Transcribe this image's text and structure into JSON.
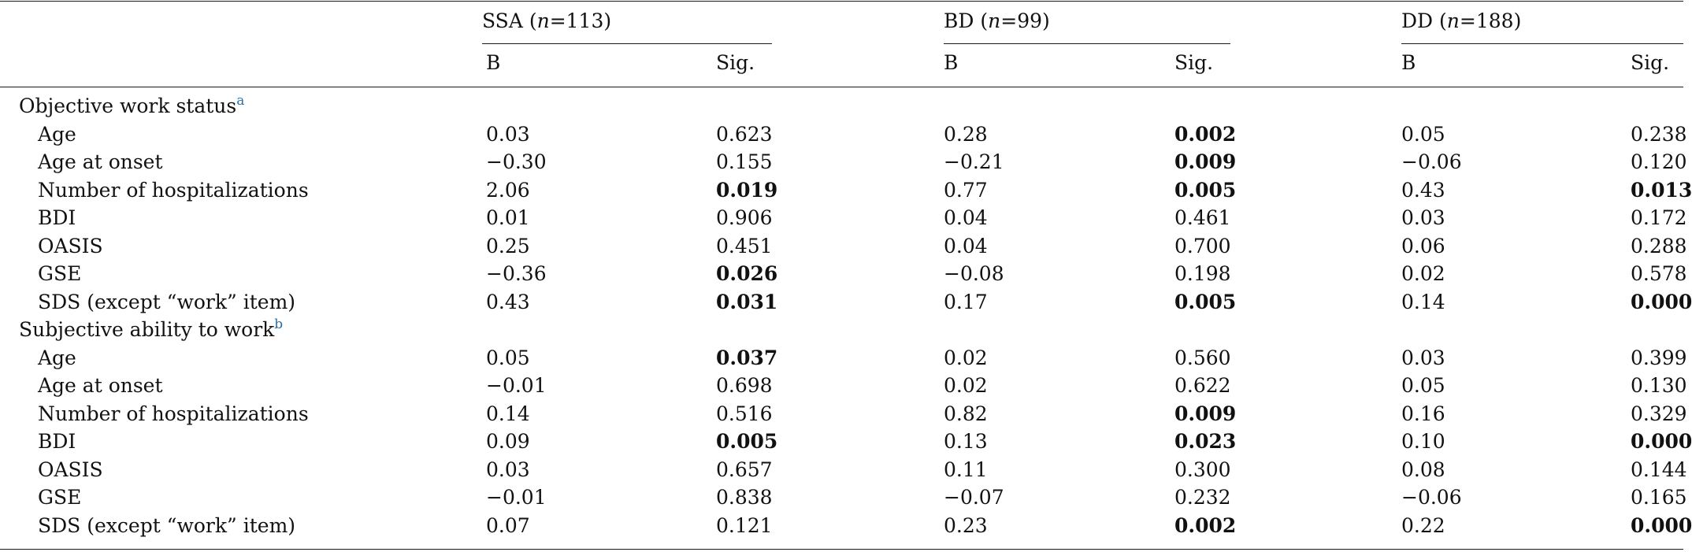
{
  "groups": [
    {
      "name": "SSA",
      "n_label": "n",
      "eq": "=",
      "n_value": "113"
    },
    {
      "name": "BD",
      "n_label": "n",
      "eq": "=",
      "n_value": "99"
    },
    {
      "name": "DD",
      "n_label": "n",
      "eq": "=",
      "n_value": "188"
    }
  ],
  "col_headers": [
    "B",
    "Sig.",
    "B",
    "Sig.",
    "B",
    "Sig."
  ],
  "sections": [
    {
      "label": "Objective work status",
      "footnote": "a",
      "rows": [
        {
          "label": "Age",
          "values": [
            "0.03",
            "0.623",
            "0.28",
            "0.002",
            "0.05",
            "0.238"
          ],
          "bold": [
            false,
            false,
            false,
            true,
            false,
            false
          ]
        },
        {
          "label": "Age at onset",
          "values": [
            "−0.30",
            "0.155",
            "−0.21",
            "0.009",
            "−0.06",
            "0.120"
          ],
          "bold": [
            false,
            false,
            false,
            true,
            false,
            false
          ]
        },
        {
          "label": "Number of hospitalizations",
          "values": [
            "2.06",
            "0.019",
            "0.77",
            "0.005",
            "0.43",
            "0.013"
          ],
          "bold": [
            false,
            true,
            false,
            true,
            false,
            true
          ]
        },
        {
          "label": "BDI",
          "values": [
            "0.01",
            "0.906",
            "0.04",
            "0.461",
            "0.03",
            "0.172"
          ],
          "bold": [
            false,
            false,
            false,
            false,
            false,
            false
          ]
        },
        {
          "label": "OASIS",
          "values": [
            "0.25",
            "0.451",
            "0.04",
            "0.700",
            "0.06",
            "0.288"
          ],
          "bold": [
            false,
            false,
            false,
            false,
            false,
            false
          ]
        },
        {
          "label": "GSE",
          "values": [
            "−0.36",
            "0.026",
            "−0.08",
            "0.198",
            "0.02",
            "0.578"
          ],
          "bold": [
            false,
            true,
            false,
            false,
            false,
            false
          ]
        },
        {
          "label": "SDS (except “work” item)",
          "values": [
            "0.43",
            "0.031",
            "0.17",
            "0.005",
            "0.14",
            "0.000"
          ],
          "bold": [
            false,
            true,
            false,
            true,
            false,
            true
          ]
        }
      ]
    },
    {
      "label": "Subjective ability to work",
      "footnote": "b",
      "rows": [
        {
          "label": "Age",
          "values": [
            "0.05",
            "0.037",
            "0.02",
            "0.560",
            "0.03",
            "0.399"
          ],
          "bold": [
            false,
            true,
            false,
            false,
            false,
            false
          ]
        },
        {
          "label": "Age at onset",
          "values": [
            "−0.01",
            "0.698",
            "0.02",
            "0.622",
            "0.05",
            "0.130"
          ],
          "bold": [
            false,
            false,
            false,
            false,
            false,
            false
          ]
        },
        {
          "label": "Number of hospitalizations",
          "values": [
            "0.14",
            "0.516",
            "0.82",
            "0.009",
            "0.16",
            "0.329"
          ],
          "bold": [
            false,
            false,
            false,
            true,
            false,
            false
          ]
        },
        {
          "label": "BDI",
          "values": [
            "0.09",
            "0.005",
            "0.13",
            "0.023",
            "0.10",
            "0.000"
          ],
          "bold": [
            false,
            true,
            false,
            true,
            false,
            true
          ]
        },
        {
          "label": "OASIS",
          "values": [
            "0.03",
            "0.657",
            "0.11",
            "0.300",
            "0.08",
            "0.144"
          ],
          "bold": [
            false,
            false,
            false,
            false,
            false,
            false
          ]
        },
        {
          "label": "GSE",
          "values": [
            "−0.01",
            "0.838",
            "−0.07",
            "0.232",
            "−0.06",
            "0.165"
          ],
          "bold": [
            false,
            false,
            false,
            false,
            false,
            false
          ]
        },
        {
          "label": "SDS (except “work” item)",
          "values": [
            "0.07",
            "0.121",
            "0.23",
            "0.002",
            "0.22",
            "0.000"
          ],
          "bold": [
            false,
            false,
            false,
            true,
            false,
            true
          ]
        }
      ]
    }
  ]
}
